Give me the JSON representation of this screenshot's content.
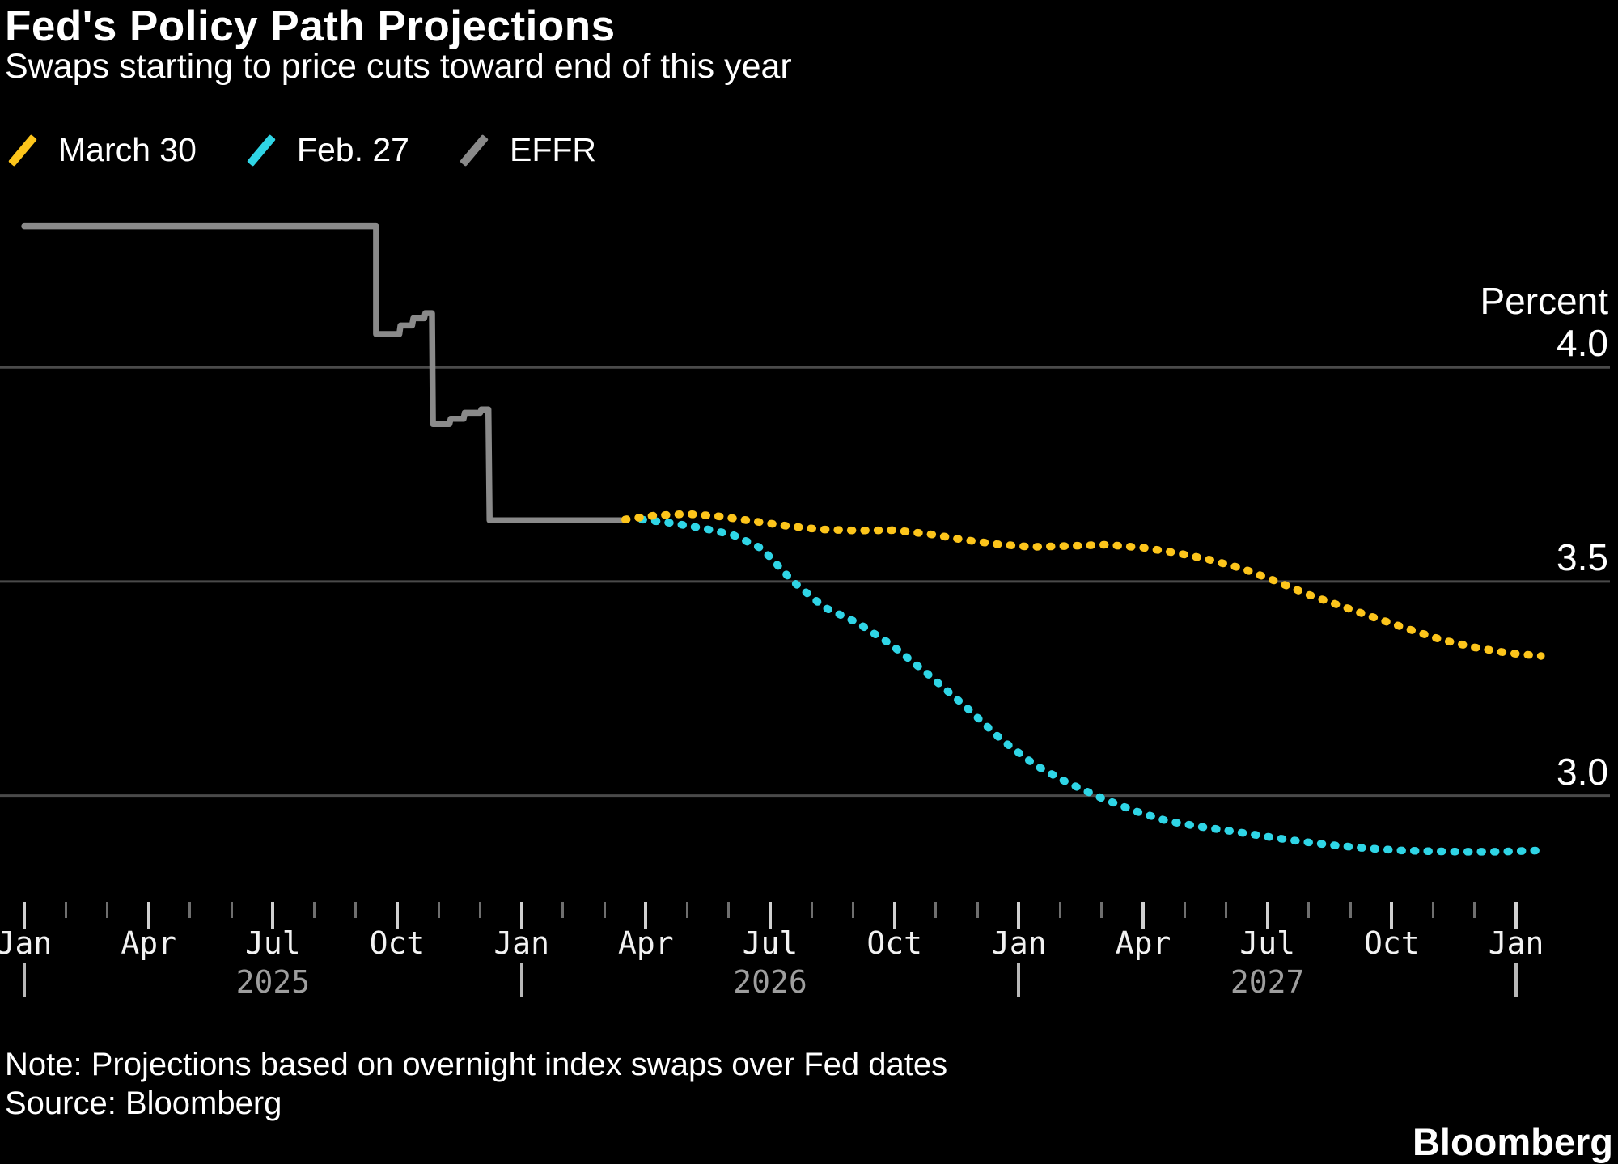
{
  "header": {
    "title": "Fed's Policy Path Projections",
    "subtitle": "Swaps starting to price cuts toward end of this year"
  },
  "legend": [
    {
      "label": "March 30",
      "color": "#fdc51b",
      "marker": "slash-icon"
    },
    {
      "label": "Feb. 27",
      "color": "#2fd5e6",
      "marker": "slash-icon"
    },
    {
      "label": "EFFR",
      "color": "#8a8a8a",
      "marker": "slash-icon"
    }
  ],
  "axis": {
    "unit_label": "Percent"
  },
  "colors": {
    "background": "#000000",
    "gridline": "#4a4a4a",
    "tick_major": "#d0d0d0",
    "tick_minor": "#6f6f6f",
    "year_divider": "#b8b8b8",
    "year_text": "#9e9e9e",
    "march30": "#fdc51b",
    "feb27": "#2fd5e6",
    "effr": "#8a8a8a"
  },
  "chart_data": {
    "type": "line",
    "title": "Fed's Policy Path Projections",
    "subtitle": "Swaps starting to price cuts toward end of this year",
    "ylabel": "Percent",
    "x_unit": "months since Jan 2025",
    "xlim": [
      0,
      36.8
    ],
    "ylim": [
      2.78,
      4.42
    ],
    "grid": "horizontal",
    "legend_position": "top-left",
    "y_ticks": [
      4.0,
      3.5,
      3.0
    ],
    "x_tick_months": [
      "Jan",
      "Apr",
      "Jul",
      "Oct",
      "Jan",
      "Apr",
      "Jul",
      "Oct",
      "Jan",
      "Apr",
      "Jul",
      "Oct",
      "Jan"
    ],
    "year_labels": [
      {
        "label": "2025",
        "center_month": 6
      },
      {
        "label": "2026",
        "center_month": 18
      },
      {
        "label": "2027",
        "center_month": 30
      }
    ],
    "year_divider_months": [
      0,
      12,
      24,
      36
    ],
    "series": [
      {
        "name": "EFFR",
        "style": "solid-step",
        "color": "#8a8a8a",
        "points": [
          [
            0,
            4.33
          ],
          [
            8.49,
            4.33
          ],
          [
            8.49,
            4.078
          ],
          [
            9.05,
            4.078
          ],
          [
            9.08,
            4.098
          ],
          [
            9.36,
            4.098
          ],
          [
            9.39,
            4.115
          ],
          [
            9.65,
            4.115
          ],
          [
            9.68,
            4.127
          ],
          [
            9.84,
            4.127
          ],
          [
            9.86,
            3.868
          ],
          [
            10.26,
            3.868
          ],
          [
            10.29,
            3.88
          ],
          [
            10.6,
            3.88
          ],
          [
            10.63,
            3.894
          ],
          [
            11.0,
            3.894
          ],
          [
            11.03,
            3.902
          ],
          [
            11.2,
            3.902
          ],
          [
            11.23,
            3.643
          ],
          [
            14.4,
            3.643
          ]
        ]
      },
      {
        "name": "Feb. 27",
        "style": "dotted",
        "color": "#2fd5e6",
        "points": [
          [
            14.9,
            3.645
          ],
          [
            15.6,
            3.637
          ],
          [
            16.4,
            3.624
          ],
          [
            17.1,
            3.609
          ],
          [
            17.8,
            3.577
          ],
          [
            18.55,
            3.5
          ],
          [
            19.3,
            3.44
          ],
          [
            20.1,
            3.404
          ],
          [
            20.9,
            3.354
          ],
          [
            21.8,
            3.284
          ],
          [
            22.7,
            3.209
          ],
          [
            23.6,
            3.129
          ],
          [
            24.4,
            3.071
          ],
          [
            25.2,
            3.029
          ],
          [
            26.0,
            2.994
          ],
          [
            26.8,
            2.964
          ],
          [
            27.6,
            2.94
          ],
          [
            28.4,
            2.927
          ],
          [
            29.2,
            2.916
          ],
          [
            30.0,
            2.904
          ],
          [
            30.8,
            2.893
          ],
          [
            31.6,
            2.884
          ],
          [
            32.4,
            2.877
          ],
          [
            33.2,
            2.872
          ],
          [
            34.0,
            2.87
          ],
          [
            34.8,
            2.869
          ],
          [
            35.6,
            2.869
          ],
          [
            36.6,
            2.872
          ]
        ]
      },
      {
        "name": "March 30",
        "style": "dotted",
        "color": "#fdc51b",
        "points": [
          [
            14.5,
            3.645
          ],
          [
            15.2,
            3.654
          ],
          [
            16.0,
            3.658
          ],
          [
            16.8,
            3.652
          ],
          [
            17.6,
            3.641
          ],
          [
            18.4,
            3.63
          ],
          [
            19.2,
            3.622
          ],
          [
            20.1,
            3.619
          ],
          [
            21.0,
            3.62
          ],
          [
            21.9,
            3.61
          ],
          [
            22.7,
            3.597
          ],
          [
            23.5,
            3.587
          ],
          [
            24.3,
            3.581
          ],
          [
            25.2,
            3.583
          ],
          [
            26.1,
            3.586
          ],
          [
            27.0,
            3.579
          ],
          [
            27.8,
            3.567
          ],
          [
            28.6,
            3.551
          ],
          [
            29.4,
            3.53
          ],
          [
            30.2,
            3.501
          ],
          [
            31.0,
            3.469
          ],
          [
            31.8,
            3.442
          ],
          [
            32.6,
            3.415
          ],
          [
            33.4,
            3.389
          ],
          [
            34.2,
            3.364
          ],
          [
            35.0,
            3.346
          ],
          [
            35.8,
            3.333
          ],
          [
            36.6,
            3.326
          ]
        ]
      }
    ]
  },
  "footer": {
    "note": "Note: Projections based on overnight index swaps over Fed dates",
    "source": "Source: Bloomberg",
    "brand": "Bloomberg"
  }
}
